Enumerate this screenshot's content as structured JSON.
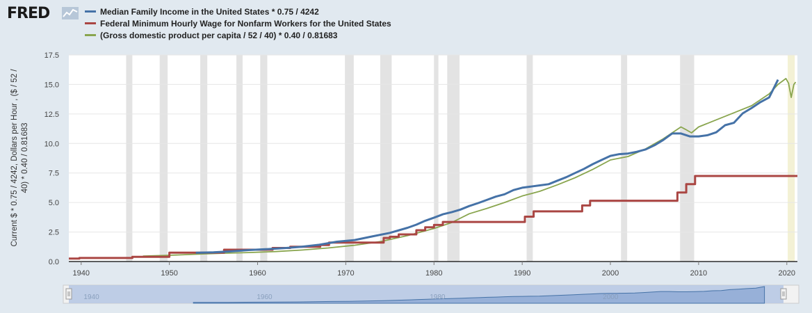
{
  "brand": {
    "logo_text": "FRED",
    "logo_icon": "chart-line-icon"
  },
  "chart_data": {
    "type": "line",
    "title": "",
    "ylabel": "Current $ * 0.75 / 4242, Dollars per Hour , ($ / 52 / 40) * 0.40 / 0.81683",
    "ylabel_lines": [
      "Current $ * 0.75 / 4242, Dollars per Hour , ($ / 52 /",
      "40) * 0.40 / 0.81683"
    ],
    "xlim": [
      1938.6,
      2021.2
    ],
    "ylim": [
      0,
      17.5
    ],
    "y_ticks": [
      "0.0",
      "2.5",
      "5.0",
      "7.5",
      "10.0",
      "12.5",
      "15.0",
      "17.5"
    ],
    "x_ticks": [
      "1940",
      "1950",
      "1960",
      "1970",
      "1980",
      "1990",
      "2000",
      "2010",
      "2020"
    ],
    "grid": true,
    "legend_position": "top-left",
    "recessions": [
      [
        1945.1,
        1945.8
      ],
      [
        1948.9,
        1949.8
      ],
      [
        1953.5,
        1954.3
      ],
      [
        1957.6,
        1958.3
      ],
      [
        1960.3,
        1961.1
      ],
      [
        1969.9,
        1970.9
      ],
      [
        1973.9,
        1975.2
      ],
      [
        1980.0,
        1980.5
      ],
      [
        1981.5,
        1982.9
      ],
      [
        1990.5,
        1991.2
      ],
      [
        2001.2,
        2001.9
      ],
      [
        2007.9,
        2009.5
      ],
      [
        2020.1,
        2020.9
      ]
    ],
    "series": [
      {
        "name": "Median Family Income in the United States * 0.75 / 4242",
        "color": "#4572a7",
        "x": [
          1953,
          1955,
          1957,
          1959,
          1961,
          1963,
          1965,
          1967,
          1969,
          1971,
          1973,
          1975,
          1977,
          1978,
          1979,
          1980,
          1981,
          1982,
          1983,
          1984,
          1985,
          1986,
          1987,
          1988,
          1989,
          1990,
          1991,
          1992,
          1993,
          1994,
          1995,
          1996,
          1997,
          1998,
          1999,
          2000,
          2001,
          2002,
          2003,
          2004,
          2005,
          2006,
          2007,
          2008,
          2009,
          2010,
          2011,
          2012,
          2013,
          2014,
          2015,
          2016,
          2017,
          2018,
          2019
        ],
        "values": [
          0.74,
          0.78,
          0.86,
          0.97,
          1.05,
          1.13,
          1.25,
          1.42,
          1.68,
          1.82,
          2.13,
          2.43,
          2.86,
          3.12,
          3.45,
          3.72,
          4.0,
          4.18,
          4.4,
          4.7,
          4.95,
          5.22,
          5.5,
          5.7,
          6.05,
          6.25,
          6.35,
          6.45,
          6.55,
          6.85,
          7.15,
          7.5,
          7.85,
          8.25,
          8.6,
          8.95,
          9.1,
          9.15,
          9.3,
          9.5,
          9.85,
          10.3,
          10.85,
          10.85,
          10.6,
          10.6,
          10.7,
          10.95,
          11.55,
          11.75,
          12.55,
          13.0,
          13.5,
          13.9,
          15.4
        ]
      },
      {
        "name": "Federal Minimum Hourly Wage for Nonfarm Workers for the United States",
        "color": "#aa4643",
        "step": true,
        "x": [
          1938.6,
          1939.8,
          1945.8,
          1950.0,
          1956.2,
          1961.7,
          1963.7,
          1967.1,
          1968.1,
          1974.3,
          1975.0,
          1976.0,
          1978.0,
          1979.0,
          1980.0,
          1981.0,
          1990.3,
          1991.3,
          1996.8,
          1997.7,
          2007.6,
          2008.6,
          2009.6,
          2021.2
        ],
        "values": [
          0.25,
          0.3,
          0.4,
          0.75,
          1.0,
          1.15,
          1.25,
          1.4,
          1.6,
          2.0,
          2.1,
          2.3,
          2.65,
          2.9,
          3.1,
          3.35,
          3.8,
          4.25,
          4.75,
          5.15,
          5.85,
          6.55,
          7.25,
          7.25
        ]
      },
      {
        "name": "(Gross domestic product per capita / 52 / 40) * 0.40 / 0.81683",
        "color": "#89a54e",
        "x": [
          1947,
          1950,
          1953,
          1956,
          1959,
          1962,
          1965,
          1968,
          1971,
          1974,
          1977,
          1980,
          1982,
          1984,
          1986,
          1988,
          1990,
          1992,
          1994,
          1996,
          1998,
          2000,
          2002,
          2004,
          2006,
          2008,
          2008.5,
          2009.2,
          2010,
          2012,
          2014,
          2016,
          2018,
          2019,
          2019.9,
          2020.2,
          2020.5,
          2020.8,
          2021.0
        ],
        "values": [
          0.46,
          0.53,
          0.62,
          0.7,
          0.76,
          0.84,
          0.97,
          1.15,
          1.38,
          1.7,
          2.2,
          2.8,
          3.3,
          4.05,
          4.5,
          5.0,
          5.55,
          5.95,
          6.5,
          7.1,
          7.8,
          8.6,
          8.9,
          9.55,
          10.4,
          11.4,
          11.2,
          10.9,
          11.4,
          12.0,
          12.6,
          13.2,
          14.2,
          15.0,
          15.5,
          15.1,
          13.9,
          15.0,
          15.2
        ]
      }
    ]
  },
  "navigator": {
    "labels": [
      "1940",
      "1960",
      "1980",
      "2000"
    ]
  }
}
